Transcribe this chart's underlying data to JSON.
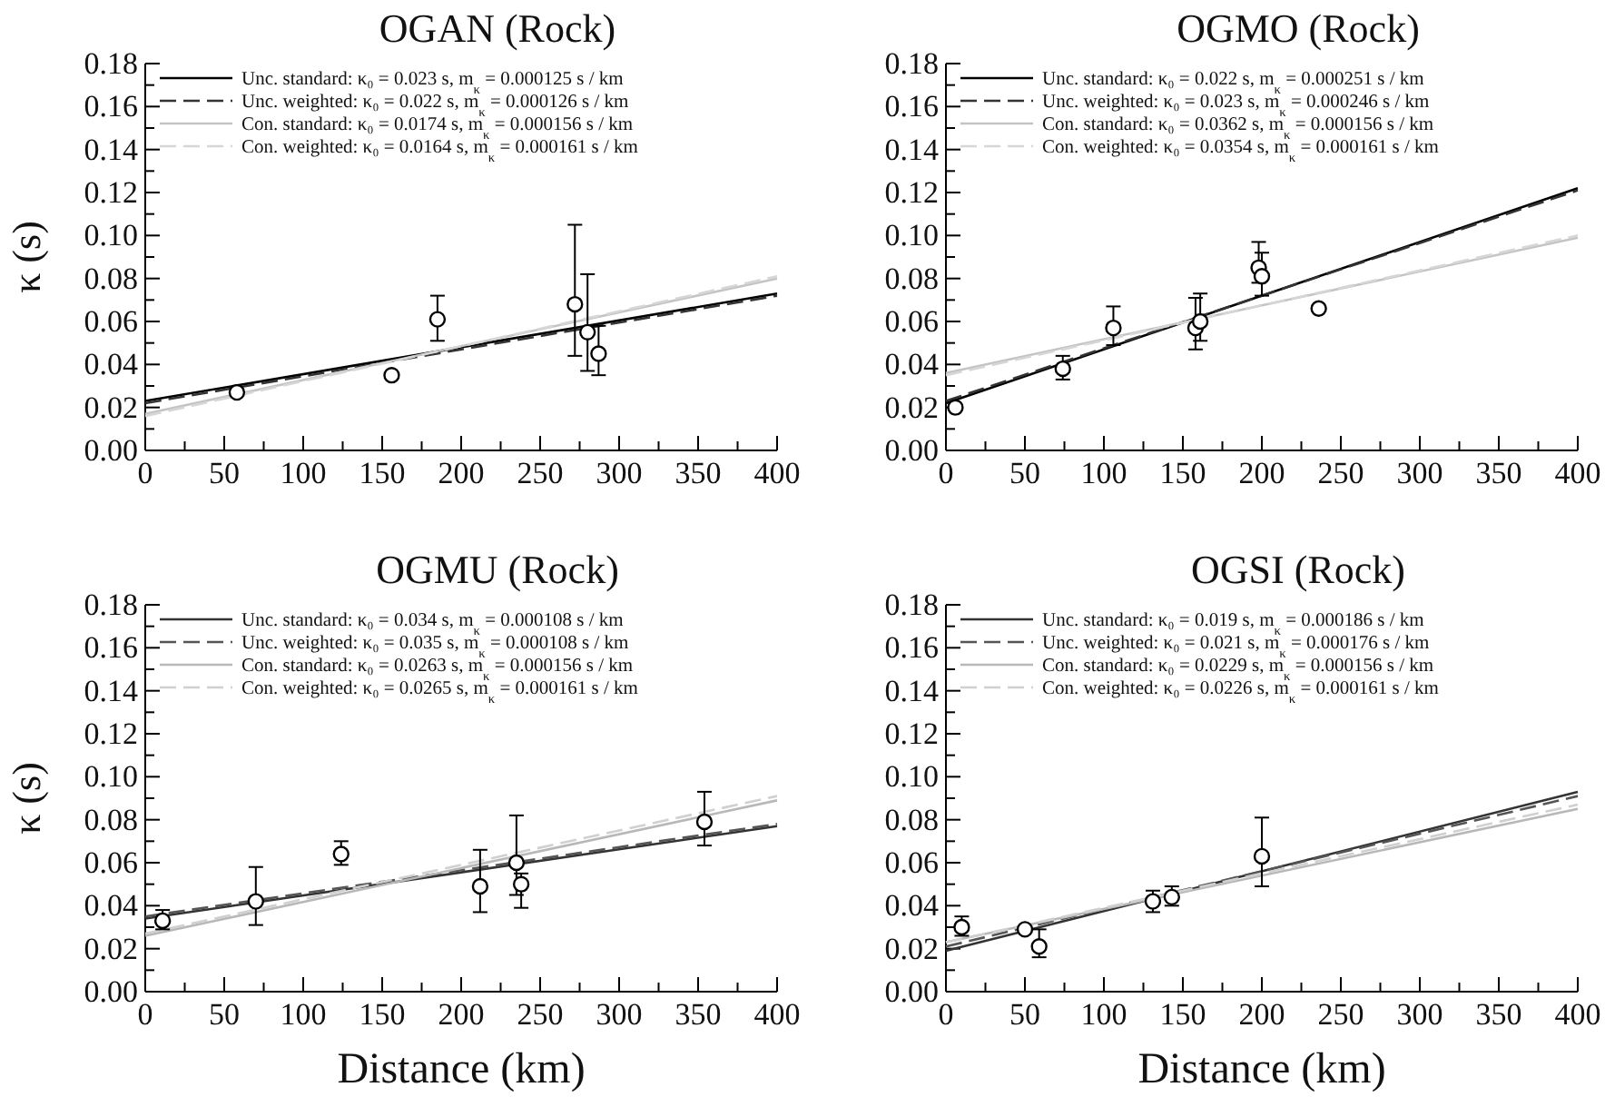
{
  "chart_data": [
    {
      "type": "line",
      "title": "OGAN (Rock)",
      "ylabel": "κ (s)",
      "legend": "top left",
      "xlim": [
        0,
        400
      ],
      "ylim": [
        0,
        0.18
      ],
      "xticks": [
        0,
        {
          "value": 25,
          "label": null
        },
        50,
        {
          "value": 75,
          "label": null
        },
        100,
        {
          "value": 125,
          "label": null
        },
        150,
        {
          "value": 175,
          "label": null
        },
        200,
        {
          "value": 225,
          "label": null
        },
        250,
        {
          "value": 275,
          "label": null
        },
        300,
        {
          "value": 325,
          "label": null
        },
        350,
        {
          "value": 375,
          "label": null
        },
        400
      ],
      "yticks": [
        {
          "value": 0,
          "label": "0.00"
        },
        {
          "value": 0.01,
          "label": null
        },
        {
          "value": 0.02,
          "label": "0.02"
        },
        {
          "value": 0.03,
          "label": null
        },
        {
          "value": 0.04,
          "label": "0.04"
        },
        {
          "value": 0.05,
          "label": null
        },
        {
          "value": 0.06,
          "label": "0.06"
        },
        {
          "value": 0.07,
          "label": null
        },
        {
          "value": 0.08,
          "label": "0.08"
        },
        {
          "value": 0.09,
          "label": null
        },
        {
          "value": 0.1,
          "label": "0.10"
        },
        {
          "value": 0.11,
          "label": null
        },
        {
          "value": 0.12,
          "label": "0.12"
        },
        {
          "value": 0.13,
          "label": null
        },
        {
          "value": 0.14,
          "label": "0.14"
        },
        {
          "value": 0.15,
          "label": null
        },
        {
          "value": 0.16,
          "label": "0.16"
        },
        {
          "value": 0.17,
          "label": null
        },
        {
          "value": 0.18,
          "label": "0.18"
        }
      ],
      "series": [
        {
          "name": "Unc. standard: κ₀ = 0.023 s,  m$_{κ}$ = 0.000125 s / km",
          "type": "line",
          "color": "#000000",
          "line_style": "solid",
          "x": [
            0,
            400
          ],
          "values": [
            0.023,
            0.073
          ]
        },
        {
          "name": "Unc. weighted: κ₀ = 0.022 s,  m$_{κ}$ = 0.000126 s / km",
          "type": "line",
          "color": "#333333",
          "line_style": "dashed",
          "x": [
            0,
            400
          ],
          "values": [
            0.022,
            0.072
          ]
        },
        {
          "name": "Con. standard: κ₀ = 0.0174 s,  m$_{κ}$ = 0.000156 s / km",
          "type": "line",
          "color": "#c4c4c4",
          "line_style": "solid",
          "x": [
            0,
            400
          ],
          "values": [
            0.017,
            0.08
          ]
        },
        {
          "name": "Con. weighted: κ₀ = 0.0164 s,  m$_{κ}$ = 0.000161 s / km",
          "type": "line",
          "color": "#d6d6d6",
          "line_style": "dashed",
          "x": [
            0,
            400
          ],
          "values": [
            0.016,
            0.081
          ]
        },
        {
          "type": "scatter",
          "color": "#000000",
          "marker": "circle",
          "x": [
            58,
            156,
            185,
            272,
            280,
            287
          ],
          "values": [
            0.027,
            0.035,
            0.061,
            0.068,
            0.055,
            0.045
          ],
          "errors": [
            null,
            null,
            [
              0.051,
              0.072
            ],
            [
              0.044,
              0.105
            ],
            [
              0.037,
              0.082
            ],
            [
              0.035,
              0.058
            ]
          ]
        }
      ]
    },
    {
      "type": "line",
      "title": "OGMO (Rock)",
      "legend": "top left",
      "xlim": [
        0,
        400
      ],
      "ylim": [
        0,
        0.18
      ],
      "xticks": [
        0,
        {
          "value": 25,
          "label": null
        },
        50,
        {
          "value": 75,
          "label": null
        },
        100,
        {
          "value": 125,
          "label": null
        },
        150,
        {
          "value": 175,
          "label": null
        },
        200,
        {
          "value": 225,
          "label": null
        },
        250,
        {
          "value": 275,
          "label": null
        },
        300,
        {
          "value": 325,
          "label": null
        },
        350,
        {
          "value": 375,
          "label": null
        },
        400
      ],
      "yticks": [
        {
          "value": 0,
          "label": "0.00"
        },
        {
          "value": 0.01,
          "label": null
        },
        {
          "value": 0.02,
          "label": "0.02"
        },
        {
          "value": 0.03,
          "label": null
        },
        {
          "value": 0.04,
          "label": "0.04"
        },
        {
          "value": 0.05,
          "label": null
        },
        {
          "value": 0.06,
          "label": "0.06"
        },
        {
          "value": 0.07,
          "label": null
        },
        {
          "value": 0.08,
          "label": "0.08"
        },
        {
          "value": 0.09,
          "label": null
        },
        {
          "value": 0.1,
          "label": "0.10"
        },
        {
          "value": 0.11,
          "label": null
        },
        {
          "value": 0.12,
          "label": "0.12"
        },
        {
          "value": 0.13,
          "label": null
        },
        {
          "value": 0.14,
          "label": "0.14"
        },
        {
          "value": 0.15,
          "label": null
        },
        {
          "value": 0.16,
          "label": "0.16"
        },
        {
          "value": 0.17,
          "label": null
        },
        {
          "value": 0.18,
          "label": "0.18"
        }
      ],
      "series": [
        {
          "name": "Unc. standard: κ₀ = 0.022 s,  m$_{κ}$ = 0.000251 s / km",
          "type": "line",
          "color": "#000000",
          "line_style": "solid",
          "x": [
            0,
            400
          ],
          "values": [
            0.022,
            0.122
          ]
        },
        {
          "name": "Unc. weighted: κ₀ = 0.023 s,  m$_{κ}$ = 0.000246 s / km",
          "type": "line",
          "color": "#333333",
          "line_style": "dashed",
          "x": [
            0,
            400
          ],
          "values": [
            0.023,
            0.121
          ]
        },
        {
          "name": "Con. standard: κ₀ = 0.0362 s,  m$_{κ}$ = 0.000156 s / km",
          "type": "line",
          "color": "#c4c4c4",
          "line_style": "solid",
          "x": [
            0,
            400
          ],
          "values": [
            0.036,
            0.099
          ]
        },
        {
          "name": "Con. weighted: κ₀ = 0.0354 s,  m$_{κ}$ = 0.000161 s / km",
          "type": "line",
          "color": "#d6d6d6",
          "line_style": "dashed",
          "x": [
            0,
            400
          ],
          "values": [
            0.035,
            0.1
          ]
        },
        {
          "type": "scatter",
          "color": "#000000",
          "marker": "circle",
          "x": [
            6,
            74,
            106,
            158,
            161,
            198,
            200,
            236
          ],
          "values": [
            0.02,
            0.038,
            0.057,
            0.057,
            0.06,
            0.085,
            0.081,
            0.066
          ],
          "errors": [
            null,
            [
              0.033,
              0.044
            ],
            [
              0.049,
              0.067
            ],
            [
              0.047,
              0.071
            ],
            [
              0.051,
              0.073
            ],
            [
              0.078,
              0.097
            ],
            [
              0.072,
              0.092
            ],
            null
          ]
        }
      ]
    },
    {
      "type": "line",
      "title": "OGMU (Rock)",
      "xlabel": "Distance (km)",
      "ylabel": "κ (s)",
      "legend": "top left",
      "xlim": [
        0,
        400
      ],
      "ylim": [
        0,
        0.18
      ],
      "xticks": [
        0,
        {
          "value": 25,
          "label": null
        },
        50,
        {
          "value": 75,
          "label": null
        },
        100,
        {
          "value": 125,
          "label": null
        },
        150,
        {
          "value": 175,
          "label": null
        },
        200,
        {
          "value": 225,
          "label": null
        },
        250,
        {
          "value": 275,
          "label": null
        },
        300,
        {
          "value": 325,
          "label": null
        },
        350,
        {
          "value": 375,
          "label": null
        },
        400
      ],
      "yticks": [
        {
          "value": 0,
          "label": "0.00"
        },
        {
          "value": 0.01,
          "label": null
        },
        {
          "value": 0.02,
          "label": "0.02"
        },
        {
          "value": 0.03,
          "label": null
        },
        {
          "value": 0.04,
          "label": "0.04"
        },
        {
          "value": 0.05,
          "label": null
        },
        {
          "value": 0.06,
          "label": "0.06"
        },
        {
          "value": 0.07,
          "label": null
        },
        {
          "value": 0.08,
          "label": "0.08"
        },
        {
          "value": 0.09,
          "label": null
        },
        {
          "value": 0.1,
          "label": "0.10"
        },
        {
          "value": 0.11,
          "label": null
        },
        {
          "value": 0.12,
          "label": "0.12"
        },
        {
          "value": 0.13,
          "label": null
        },
        {
          "value": 0.14,
          "label": "0.14"
        },
        {
          "value": 0.15,
          "label": null
        },
        {
          "value": 0.16,
          "label": "0.16"
        },
        {
          "value": 0.17,
          "label": null
        },
        {
          "value": 0.18,
          "label": "0.18"
        }
      ],
      "series": [
        {
          "name": "Unc. standard: κ₀ = 0.034 s,  m$_{κ}$ = 0.000108 s / km",
          "type": "line",
          "color": "#333333",
          "line_style": "solid",
          "x": [
            0,
            400
          ],
          "values": [
            0.034,
            0.077
          ]
        },
        {
          "name": "Unc. weighted: κ₀ = 0.035 s,  m$_{κ}$ = 0.000108 s / km",
          "type": "line",
          "color": "#555555",
          "line_style": "dashed",
          "x": [
            0,
            400
          ],
          "values": [
            0.035,
            0.078
          ]
        },
        {
          "name": "Con. standard: κ₀ = 0.0263 s,  m$_{κ}$ = 0.000156 s / km",
          "type": "line",
          "color": "#b8b8b8",
          "line_style": "solid",
          "x": [
            0,
            400
          ],
          "values": [
            0.026,
            0.089
          ]
        },
        {
          "name": "Con. weighted: κ₀ = 0.0265 s,  m$_{κ}$ = 0.000161 s / km",
          "type": "line",
          "color": "#d0d0d0",
          "line_style": "dashed",
          "x": [
            0,
            400
          ],
          "values": [
            0.027,
            0.091
          ]
        },
        {
          "type": "scatter",
          "color": "#000000",
          "marker": "circle",
          "x": [
            11,
            70,
            124,
            212,
            235,
            238,
            354
          ],
          "values": [
            0.033,
            0.042,
            0.064,
            0.049,
            0.06,
            0.05,
            0.079
          ],
          "errors": [
            [
              0.029,
              0.038
            ],
            [
              0.031,
              0.058
            ],
            [
              0.059,
              0.07
            ],
            [
              0.037,
              0.066
            ],
            [
              0.045,
              0.082
            ],
            [
              0.039,
              0.055
            ],
            [
              0.068,
              0.093
            ]
          ]
        }
      ]
    },
    {
      "type": "line",
      "title": "OGSI (Rock)",
      "xlabel": "Distance (km)",
      "legend": "top left",
      "xlim": [
        0,
        400
      ],
      "ylim": [
        0,
        0.18
      ],
      "xticks": [
        0,
        {
          "value": 25,
          "label": null
        },
        50,
        {
          "value": 75,
          "label": null
        },
        100,
        {
          "value": 125,
          "label": null
        },
        150,
        {
          "value": 175,
          "label": null
        },
        200,
        {
          "value": 225,
          "label": null
        },
        250,
        {
          "value": 275,
          "label": null
        },
        300,
        {
          "value": 325,
          "label": null
        },
        350,
        {
          "value": 375,
          "label": null
        },
        400
      ],
      "yticks": [
        {
          "value": 0,
          "label": "0.00"
        },
        {
          "value": 0.01,
          "label": null
        },
        {
          "value": 0.02,
          "label": "0.02"
        },
        {
          "value": 0.03,
          "label": null
        },
        {
          "value": 0.04,
          "label": "0.04"
        },
        {
          "value": 0.05,
          "label": null
        },
        {
          "value": 0.06,
          "label": "0.06"
        },
        {
          "value": 0.07,
          "label": null
        },
        {
          "value": 0.08,
          "label": "0.08"
        },
        {
          "value": 0.09,
          "label": null
        },
        {
          "value": 0.1,
          "label": "0.10"
        },
        {
          "value": 0.11,
          "label": null
        },
        {
          "value": 0.12,
          "label": "0.12"
        },
        {
          "value": 0.13,
          "label": null
        },
        {
          "value": 0.14,
          "label": "0.14"
        },
        {
          "value": 0.15,
          "label": null
        },
        {
          "value": 0.16,
          "label": "0.16"
        },
        {
          "value": 0.17,
          "label": null
        },
        {
          "value": 0.18,
          "label": "0.18"
        }
      ],
      "series": [
        {
          "name": "Unc. standard: κ₀ = 0.019 s,  m$_{κ}$ = 0.000186 s / km",
          "type": "line",
          "color": "#333333",
          "line_style": "solid",
          "x": [
            0,
            400
          ],
          "values": [
            0.019,
            0.093
          ]
        },
        {
          "name": "Unc. weighted: κ₀ = 0.021 s,  m$_{κ}$ = 0.000176 s / km",
          "type": "line",
          "color": "#555555",
          "line_style": "dashed",
          "x": [
            0,
            400
          ],
          "values": [
            0.021,
            0.091
          ]
        },
        {
          "name": "Con. standard: κ₀ = 0.0229 s,  m$_{κ}$ = 0.000156 s / km",
          "type": "line",
          "color": "#b8b8b8",
          "line_style": "solid",
          "x": [
            0,
            400
          ],
          "values": [
            0.023,
            0.085
          ]
        },
        {
          "name": "Con. weighted: κ₀ = 0.0226 s,  m$_{κ}$ = 0.000161 s / km",
          "type": "line",
          "color": "#d0d0d0",
          "line_style": "dashed",
          "x": [
            0,
            400
          ],
          "values": [
            0.023,
            0.087
          ]
        },
        {
          "type": "scatter",
          "color": "#000000",
          "marker": "circle",
          "x": [
            10,
            50,
            59,
            131,
            143,
            200
          ],
          "values": [
            0.03,
            0.029,
            0.021,
            0.042,
            0.044,
            0.063
          ],
          "errors": [
            [
              0.026,
              0.035
            ],
            null,
            [
              0.016,
              0.029
            ],
            [
              0.037,
              0.047
            ],
            [
              0.04,
              0.049
            ],
            [
              0.049,
              0.081
            ]
          ]
        }
      ]
    }
  ]
}
